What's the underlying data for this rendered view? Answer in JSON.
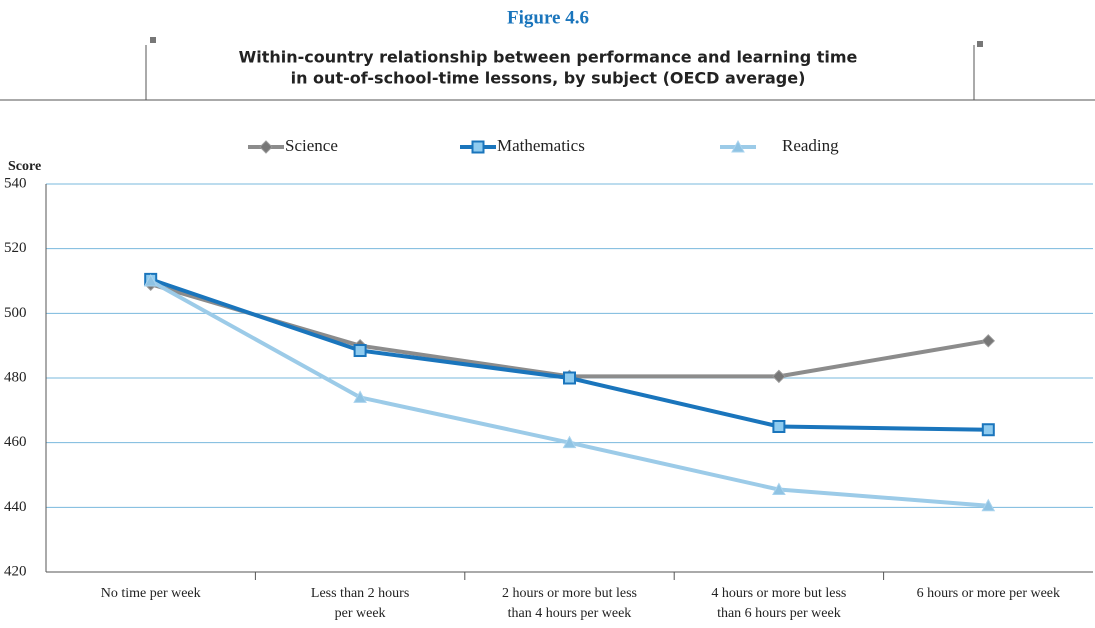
{
  "chart_data": {
    "type": "line",
    "title": "Figure 4.6",
    "subtitle": [
      "Within-country relationship between performance and learning time",
      "in out-of-school-time lessons, by subject (OECD average)"
    ],
    "y_label": "Score",
    "categories": [
      "No time per week",
      "Less than 2 hours\nper week",
      "2 hours or more but less\nthan 4 hours per week",
      "4 hours or more but less\nthan 6 hours per week",
      "6 hours or more per week"
    ],
    "series": [
      {
        "name": "Science",
        "color": "#8c8c8c",
        "marker": "diamond",
        "values": [
          509,
          490,
          480.5,
          480.5,
          491.5
        ]
      },
      {
        "name": "Mathematics",
        "color": "#1a75bc",
        "marker": "square",
        "values": [
          510.5,
          488.5,
          480,
          465,
          464
        ]
      },
      {
        "name": "Reading",
        "color": "#9ccbe8",
        "marker": "triangle",
        "values": [
          510,
          474,
          460,
          445.5,
          440.5
        ]
      }
    ],
    "ylim": [
      420,
      540
    ],
    "yticks": [
      420,
      440,
      460,
      480,
      500,
      520,
      540
    ],
    "grid": true
  }
}
